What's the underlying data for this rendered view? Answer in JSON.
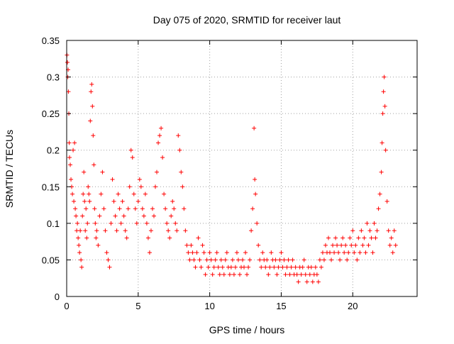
{
  "chart_data": {
    "type": "scatter",
    "title": "Day 075 of 2020, SRMTID for receiver laut",
    "xlabel": "GPS time / hours",
    "ylabel": "SRMTID / TECUs",
    "xlim": [
      0,
      24.5
    ],
    "ylim": [
      0,
      0.35
    ],
    "x_ticks": [
      0,
      5,
      10,
      15,
      20
    ],
    "x_tick_labels": [
      "0",
      "5",
      "10",
      "15",
      "20"
    ],
    "y_ticks": [
      0,
      0.05,
      0.1,
      0.15,
      0.2,
      0.25,
      0.3,
      0.35
    ],
    "y_tick_labels": [
      "0",
      "0.05",
      "0.1",
      "0.15",
      "0.2",
      "0.25",
      "0.3",
      "0.35"
    ],
    "grid": true,
    "marker": "+",
    "color": "#ff0000",
    "series": [
      {
        "name": "SRMTID",
        "points": [
          [
            0.02,
            0.33
          ],
          [
            0.05,
            0.32
          ],
          [
            0.08,
            0.3
          ],
          [
            0.1,
            0.31
          ],
          [
            0.12,
            0.28
          ],
          [
            0.15,
            0.25
          ],
          [
            0.18,
            0.21
          ],
          [
            0.2,
            0.19
          ],
          [
            0.25,
            0.18
          ],
          [
            0.3,
            0.16
          ],
          [
            0.35,
            0.15
          ],
          [
            0.4,
            0.14
          ],
          [
            0.45,
            0.2
          ],
          [
            0.5,
            0.13
          ],
          [
            0.55,
            0.21
          ],
          [
            0.6,
            0.12
          ],
          [
            0.65,
            0.11
          ],
          [
            0.7,
            0.09
          ],
          [
            0.75,
            0.1
          ],
          [
            0.8,
            0.08
          ],
          [
            0.85,
            0.07
          ],
          [
            0.9,
            0.06
          ],
          [
            0.95,
            0.09
          ],
          [
            1.0,
            0.05
          ],
          [
            1.05,
            0.04
          ],
          [
            1.1,
            0.11
          ],
          [
            1.15,
            0.14
          ],
          [
            1.2,
            0.17
          ],
          [
            1.25,
            0.13
          ],
          [
            1.3,
            0.09
          ],
          [
            1.35,
            0.12
          ],
          [
            1.4,
            0.08
          ],
          [
            1.45,
            0.1
          ],
          [
            1.5,
            0.15
          ],
          [
            1.55,
            0.14
          ],
          [
            1.6,
            0.13
          ],
          [
            1.65,
            0.24
          ],
          [
            1.7,
            0.28
          ],
          [
            1.75,
            0.29
          ],
          [
            1.8,
            0.26
          ],
          [
            1.85,
            0.22
          ],
          [
            1.9,
            0.18
          ],
          [
            1.95,
            0.12
          ],
          [
            2.0,
            0.1
          ],
          [
            2.05,
            0.08
          ],
          [
            2.1,
            0.09
          ],
          [
            2.2,
            0.07
          ],
          [
            2.3,
            0.11
          ],
          [
            2.4,
            0.14
          ],
          [
            2.5,
            0.17
          ],
          [
            2.6,
            0.12
          ],
          [
            2.7,
            0.09
          ],
          [
            2.8,
            0.06
          ],
          [
            2.9,
            0.05
          ],
          [
            3.0,
            0.04
          ],
          [
            3.1,
            0.1
          ],
          [
            3.2,
            0.16
          ],
          [
            3.3,
            0.13
          ],
          [
            3.4,
            0.11
          ],
          [
            3.5,
            0.09
          ],
          [
            3.6,
            0.14
          ],
          [
            3.7,
            0.12
          ],
          [
            3.8,
            0.1
          ],
          [
            3.9,
            0.13
          ],
          [
            4.0,
            0.11
          ],
          [
            4.1,
            0.09
          ],
          [
            4.2,
            0.08
          ],
          [
            4.3,
            0.12
          ],
          [
            4.4,
            0.15
          ],
          [
            4.5,
            0.2
          ],
          [
            4.6,
            0.19
          ],
          [
            4.7,
            0.14
          ],
          [
            4.8,
            0.12
          ],
          [
            4.9,
            0.1
          ],
          [
            5.0,
            0.13
          ],
          [
            5.1,
            0.16
          ],
          [
            5.2,
            0.15
          ],
          [
            5.3,
            0.12
          ],
          [
            5.4,
            0.11
          ],
          [
            5.5,
            0.14
          ],
          [
            5.6,
            0.1
          ],
          [
            5.7,
            0.08
          ],
          [
            5.8,
            0.06
          ],
          [
            5.9,
            0.09
          ],
          [
            6.0,
            0.12
          ],
          [
            6.1,
            0.11
          ],
          [
            6.2,
            0.15
          ],
          [
            6.3,
            0.17
          ],
          [
            6.4,
            0.21
          ],
          [
            6.5,
            0.22
          ],
          [
            6.6,
            0.23
          ],
          [
            6.7,
            0.19
          ],
          [
            6.8,
            0.14
          ],
          [
            6.9,
            0.12
          ],
          [
            7.0,
            0.1
          ],
          [
            7.1,
            0.09
          ],
          [
            7.2,
            0.08
          ],
          [
            7.3,
            0.11
          ],
          [
            7.4,
            0.13
          ],
          [
            7.5,
            0.12
          ],
          [
            7.6,
            0.1
          ],
          [
            7.7,
            0.09
          ],
          [
            7.8,
            0.22
          ],
          [
            7.9,
            0.2
          ],
          [
            8.0,
            0.17
          ],
          [
            8.1,
            0.15
          ],
          [
            8.2,
            0.12
          ],
          [
            8.3,
            0.09
          ],
          [
            8.4,
            0.07
          ],
          [
            8.5,
            0.06
          ],
          [
            8.6,
            0.05
          ],
          [
            8.7,
            0.07
          ],
          [
            8.8,
            0.06
          ],
          [
            8.9,
            0.05
          ],
          [
            9.0,
            0.04
          ],
          [
            9.1,
            0.06
          ],
          [
            9.2,
            0.08
          ],
          [
            9.3,
            0.05
          ],
          [
            9.4,
            0.04
          ],
          [
            9.5,
            0.07
          ],
          [
            9.6,
            0.06
          ],
          [
            9.7,
            0.03
          ],
          [
            9.8,
            0.05
          ],
          [
            9.9,
            0.04
          ],
          [
            10.0,
            0.06
          ],
          [
            10.1,
            0.05
          ],
          [
            10.2,
            0.03
          ],
          [
            10.3,
            0.04
          ],
          [
            10.4,
            0.05
          ],
          [
            10.5,
            0.06
          ],
          [
            10.6,
            0.04
          ],
          [
            10.7,
            0.03
          ],
          [
            10.8,
            0.05
          ],
          [
            10.9,
            0.04
          ],
          [
            11.0,
            0.03
          ],
          [
            11.1,
            0.05
          ],
          [
            11.2,
            0.06
          ],
          [
            11.3,
            0.04
          ],
          [
            11.4,
            0.03
          ],
          [
            11.5,
            0.04
          ],
          [
            11.6,
            0.05
          ],
          [
            11.7,
            0.03
          ],
          [
            11.8,
            0.04
          ],
          [
            11.9,
            0.06
          ],
          [
            12.0,
            0.05
          ],
          [
            12.1,
            0.03
          ],
          [
            12.2,
            0.04
          ],
          [
            12.3,
            0.05
          ],
          [
            12.4,
            0.04
          ],
          [
            12.5,
            0.06
          ],
          [
            12.6,
            0.03
          ],
          [
            12.7,
            0.04
          ],
          [
            12.8,
            0.05
          ],
          [
            12.9,
            0.09
          ],
          [
            13.0,
            0.12
          ],
          [
            13.1,
            0.23
          ],
          [
            13.15,
            0.16
          ],
          [
            13.2,
            0.14
          ],
          [
            13.3,
            0.1
          ],
          [
            13.4,
            0.07
          ],
          [
            13.5,
            0.05
          ],
          [
            13.6,
            0.04
          ],
          [
            13.7,
            0.06
          ],
          [
            13.8,
            0.05
          ],
          [
            13.9,
            0.04
          ],
          [
            14.0,
            0.05
          ],
          [
            14.1,
            0.03
          ],
          [
            14.2,
            0.04
          ],
          [
            14.3,
            0.06
          ],
          [
            14.4,
            0.05
          ],
          [
            14.5,
            0.04
          ],
          [
            14.6,
            0.05
          ],
          [
            14.7,
            0.03
          ],
          [
            14.8,
            0.04
          ],
          [
            14.9,
            0.05
          ],
          [
            15.0,
            0.06
          ],
          [
            15.1,
            0.04
          ],
          [
            15.2,
            0.05
          ],
          [
            15.3,
            0.03
          ],
          [
            15.4,
            0.04
          ],
          [
            15.5,
            0.05
          ],
          [
            15.6,
            0.03
          ],
          [
            15.7,
            0.04
          ],
          [
            15.8,
            0.05
          ],
          [
            15.9,
            0.03
          ],
          [
            16.0,
            0.04
          ],
          [
            16.1,
            0.03
          ],
          [
            16.2,
            0.02
          ],
          [
            16.3,
            0.04
          ],
          [
            16.4,
            0.03
          ],
          [
            16.5,
            0.04
          ],
          [
            16.6,
            0.05
          ],
          [
            16.7,
            0.03
          ],
          [
            16.8,
            0.02
          ],
          [
            16.9,
            0.04
          ],
          [
            17.0,
            0.03
          ],
          [
            17.1,
            0.04
          ],
          [
            17.2,
            0.02
          ],
          [
            17.3,
            0.03
          ],
          [
            17.4,
            0.04
          ],
          [
            17.5,
            0.03
          ],
          [
            17.6,
            0.02
          ],
          [
            17.7,
            0.05
          ],
          [
            17.8,
            0.04
          ],
          [
            17.9,
            0.06
          ],
          [
            18.0,
            0.05
          ],
          [
            18.1,
            0.07
          ],
          [
            18.2,
            0.06
          ],
          [
            18.3,
            0.08
          ],
          [
            18.4,
            0.06
          ],
          [
            18.5,
            0.05
          ],
          [
            18.6,
            0.07
          ],
          [
            18.7,
            0.06
          ],
          [
            18.8,
            0.08
          ],
          [
            18.9,
            0.07
          ],
          [
            19.0,
            0.06
          ],
          [
            19.1,
            0.05
          ],
          [
            19.2,
            0.07
          ],
          [
            19.3,
            0.08
          ],
          [
            19.4,
            0.06
          ],
          [
            19.5,
            0.07
          ],
          [
            19.6,
            0.05
          ],
          [
            19.7,
            0.06
          ],
          [
            19.8,
            0.08
          ],
          [
            19.9,
            0.07
          ],
          [
            20.0,
            0.09
          ],
          [
            20.1,
            0.06
          ],
          [
            20.2,
            0.07
          ],
          [
            20.3,
            0.05
          ],
          [
            20.4,
            0.08
          ],
          [
            20.5,
            0.06
          ],
          [
            20.6,
            0.09
          ],
          [
            20.7,
            0.07
          ],
          [
            20.8,
            0.08
          ],
          [
            20.9,
            0.06
          ],
          [
            21.0,
            0.1
          ],
          [
            21.1,
            0.07
          ],
          [
            21.2,
            0.09
          ],
          [
            21.3,
            0.08
          ],
          [
            21.4,
            0.06
          ],
          [
            21.5,
            0.1
          ],
          [
            21.6,
            0.08
          ],
          [
            21.7,
            0.09
          ],
          [
            21.8,
            0.12
          ],
          [
            21.9,
            0.14
          ],
          [
            22.0,
            0.17
          ],
          [
            22.05,
            0.21
          ],
          [
            22.1,
            0.25
          ],
          [
            22.15,
            0.28
          ],
          [
            22.2,
            0.3
          ],
          [
            22.25,
            0.26
          ],
          [
            22.3,
            0.2
          ],
          [
            22.4,
            0.13
          ],
          [
            22.5,
            0.09
          ],
          [
            22.6,
            0.07
          ],
          [
            22.7,
            0.08
          ],
          [
            22.8,
            0.06
          ],
          [
            22.9,
            0.09
          ],
          [
            23.0,
            0.07
          ]
        ]
      }
    ]
  }
}
